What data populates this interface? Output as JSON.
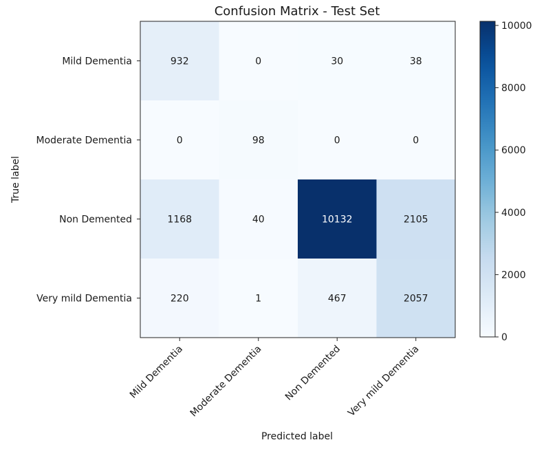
{
  "chart_data": {
    "type": "heatmap",
    "title": "Confusion Matrix - Test Set",
    "xlabel": "Predicted label",
    "ylabel": "True label",
    "row_labels": [
      "Mild Dementia",
      "Moderate Dementia",
      "Non Demented",
      "Very mild Dementia"
    ],
    "col_labels": [
      "Mild Dementia",
      "Moderate Dementia",
      "Non Demented",
      "Very mild Dementia"
    ],
    "values": [
      [
        932,
        0,
        30,
        38
      ],
      [
        0,
        98,
        0,
        0
      ],
      [
        1168,
        40,
        10132,
        2105
      ],
      [
        220,
        1,
        467,
        2057
      ]
    ],
    "colormap": "Blues",
    "colorbar": {
      "min": 0,
      "max": 10132,
      "ticks": [
        0,
        2000,
        4000,
        6000,
        8000,
        10000
      ]
    },
    "colors": {
      "cmap_low": "#f7fbff",
      "cmap_high": "#08306b",
      "text_dark": "#1a1a1a",
      "text_light": "#ffffff"
    }
  }
}
